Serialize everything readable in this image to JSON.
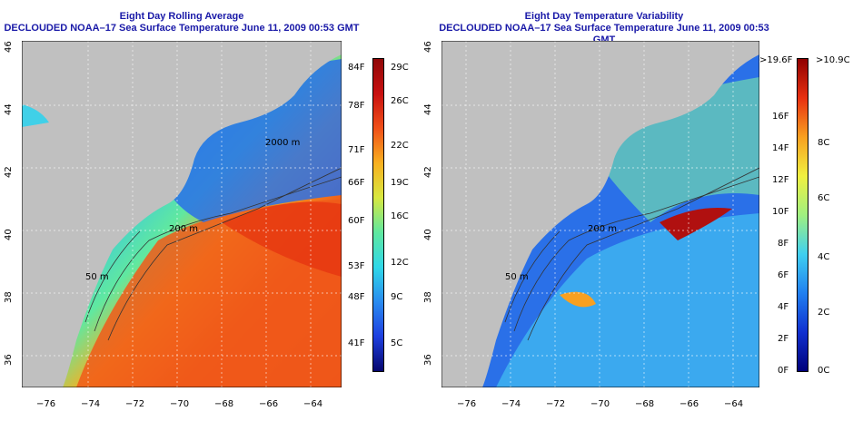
{
  "left_panel": {
    "title_line1": "Eight Day Rolling Average",
    "title_line2": "DECLOUDED NOAA–17 Sea Surface Temperature June 11, 2009 00:53 GMT",
    "colorbar_f": [
      "84F",
      "78F",
      "71F",
      "66F",
      "60F",
      "53F",
      "48F",
      "41F"
    ],
    "colorbar_c": [
      "29C",
      "26C",
      "22C",
      "19C",
      "16C",
      "12C",
      "9C",
      "5C"
    ]
  },
  "right_panel": {
    "title_line1": "Eight Day Temperature Variability",
    "title_line2": "DECLOUDED NOAA–17 Sea Surface Temperature June 11, 2009 00:53 GMT",
    "colorbar_f": [
      ">19.6F",
      "16F",
      "14F",
      "12F",
      "10F",
      "8F",
      "6F",
      "4F",
      "2F",
      "0F"
    ],
    "colorbar_c": [
      ">10.9C",
      "8C",
      "6C",
      "4C",
      "2C",
      "0C"
    ]
  },
  "x_ticks": [
    "−76",
    "−74",
    "−72",
    "−70",
    "−68",
    "−66",
    "−64"
  ],
  "y_ticks": [
    "46",
    "44",
    "42",
    "40",
    "38",
    "36"
  ],
  "contour_labels": [
    "200 m",
    "2000 m",
    "200 m",
    "50 m",
    "50 m"
  ],
  "colors": {
    "land": "#c0c0c0",
    "title": "#1a1aa8",
    "sst_scale": [
      "#06066e",
      "#1e40e0",
      "#2a8cf0",
      "#30d8e8",
      "#60e8a0",
      "#d8e840",
      "#f8b020",
      "#f05018",
      "#c81010",
      "#900808"
    ],
    "var_scale": [
      "#00007a",
      "#1030d0",
      "#2080f0",
      "#40d0f0",
      "#a0f080",
      "#f0f040",
      "#f8a020",
      "#e83010",
      "#900000"
    ]
  }
}
